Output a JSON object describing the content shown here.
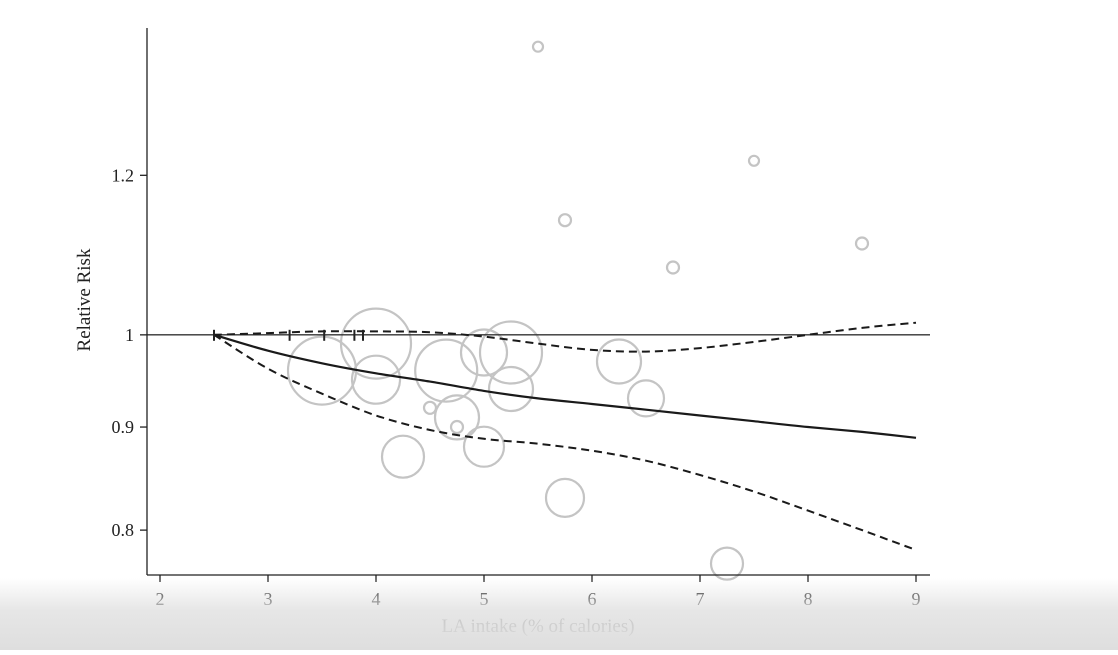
{
  "chart_data": {
    "type": "scatter",
    "title": "",
    "xlabel": "LA intake (% of calories)",
    "ylabel": "Relative Risk",
    "xlim": [
      2,
      9
    ],
    "ylim": [
      0.76,
      1.42
    ],
    "xticks": [
      "2",
      "3",
      "4",
      "5",
      "6",
      "7",
      "8",
      "9"
    ],
    "yticks": [
      "0.8",
      "0.9",
      "1",
      "1.2"
    ],
    "x_tick_values": [
      2,
      3,
      4,
      5,
      6,
      7,
      8,
      9
    ],
    "y_tick_values": [
      0.8,
      0.9,
      1.0,
      1.2
    ],
    "y_scale": "log",
    "grid": false,
    "reference_line": 1,
    "colors": {
      "axis": "#222222",
      "curve": "#1a1a1a",
      "bubble": "#c4c4c4",
      "reference": "#333333"
    },
    "series": [
      {
        "role": "estimate",
        "style": "solid",
        "x": [
          2.5,
          3,
          3.5,
          4,
          4.5,
          5,
          5.5,
          6,
          6.5,
          7,
          7.5,
          8,
          8.5,
          9
        ],
        "y": [
          1.0,
          0.982,
          0.968,
          0.957,
          0.948,
          0.938,
          0.93,
          0.924,
          0.918,
          0.912,
          0.906,
          0.9,
          0.895,
          0.889
        ]
      },
      {
        "role": "upper_ci",
        "style": "dashed",
        "x": [
          2.5,
          3,
          3.5,
          4,
          4.5,
          5,
          5.5,
          6,
          6.5,
          7,
          7.5,
          8,
          8.5,
          9
        ],
        "y": [
          1.0,
          1.002,
          1.004,
          1.004,
          1.003,
          0.998,
          0.99,
          0.983,
          0.981,
          0.985,
          0.992,
          1.0,
          1.008,
          1.014
        ]
      },
      {
        "role": "lower_ci",
        "style": "dashed",
        "x": [
          2.5,
          3,
          3.5,
          4,
          4.5,
          5,
          5.5,
          6,
          6.5,
          7,
          7.5,
          8,
          8.5,
          9
        ],
        "y": [
          1.0,
          0.962,
          0.935,
          0.912,
          0.897,
          0.888,
          0.883,
          0.876,
          0.866,
          0.852,
          0.836,
          0.818,
          0.8,
          0.782
        ]
      }
    ],
    "bubbles": [
      {
        "x": 3.5,
        "y": 0.96,
        "r": 34
      },
      {
        "x": 4.0,
        "y": 0.99,
        "r": 35
      },
      {
        "x": 4.0,
        "y": 0.95,
        "r": 24
      },
      {
        "x": 4.25,
        "y": 0.87,
        "r": 21
      },
      {
        "x": 4.5,
        "y": 0.92,
        "r": 6
      },
      {
        "x": 4.65,
        "y": 0.96,
        "r": 31
      },
      {
        "x": 4.75,
        "y": 0.91,
        "r": 22
      },
      {
        "x": 4.75,
        "y": 0.9,
        "r": 6
      },
      {
        "x": 5.0,
        "y": 0.98,
        "r": 23
      },
      {
        "x": 5.0,
        "y": 0.88,
        "r": 20
      },
      {
        "x": 5.25,
        "y": 0.98,
        "r": 31
      },
      {
        "x": 5.25,
        "y": 0.94,
        "r": 22
      },
      {
        "x": 5.5,
        "y": 1.39,
        "r": 5
      },
      {
        "x": 5.75,
        "y": 1.14,
        "r": 6
      },
      {
        "x": 5.75,
        "y": 0.83,
        "r": 19
      },
      {
        "x": 6.25,
        "y": 0.97,
        "r": 22
      },
      {
        "x": 6.5,
        "y": 0.93,
        "r": 18
      },
      {
        "x": 6.75,
        "y": 1.08,
        "r": 6
      },
      {
        "x": 7.25,
        "y": 0.77,
        "r": 16
      },
      {
        "x": 7.5,
        "y": 1.22,
        "r": 5
      },
      {
        "x": 8.5,
        "y": 1.11,
        "r": 6
      }
    ],
    "knots_x": [
      2.5,
      3.2,
      3.52,
      3.8,
      3.88
    ]
  }
}
